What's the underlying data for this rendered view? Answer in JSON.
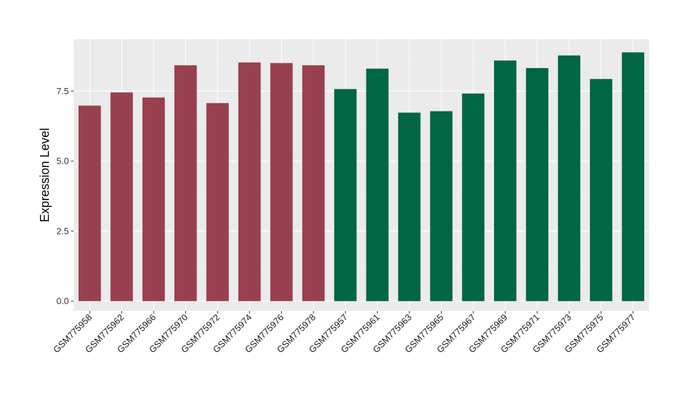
{
  "chart_data": {
    "type": "bar",
    "title": "",
    "xlabel": "",
    "ylabel": "Expression Level",
    "ylim": [
      -0.35,
      9.35
    ],
    "yticks": [
      0.0,
      2.5,
      5.0,
      7.5
    ],
    "ytick_labels": [
      "0.0",
      "2.5",
      "5.0",
      "7.5"
    ],
    "grid": true,
    "legend": "none",
    "categories": [
      "GSM775958",
      "GSM775962",
      "GSM775966",
      "GSM775970",
      "GSM775972",
      "GSM775974",
      "GSM775976",
      "GSM775978",
      "GSM775957",
      "GSM775961",
      "GSM775963",
      "GSM775965",
      "GSM775967",
      "GSM775969",
      "GSM775971",
      "GSM775973",
      "GSM775975",
      "GSM775977"
    ],
    "values": [
      6.98,
      7.45,
      7.27,
      8.42,
      7.07,
      8.52,
      8.5,
      8.42,
      7.57,
      8.3,
      6.73,
      6.78,
      7.41,
      8.59,
      8.32,
      8.77,
      7.93,
      8.88
    ],
    "group_of_bar": [
      0,
      0,
      0,
      0,
      0,
      0,
      0,
      0,
      1,
      1,
      1,
      1,
      1,
      1,
      1,
      1,
      1,
      1
    ],
    "group_colors": [
      "#99404f",
      "#016644"
    ]
  },
  "style": {
    "panel_background": "#ebebeb",
    "grid_major_color": "#ffffff",
    "grid_minor_color": "#f5f5f5",
    "tick_color": "#333333"
  }
}
